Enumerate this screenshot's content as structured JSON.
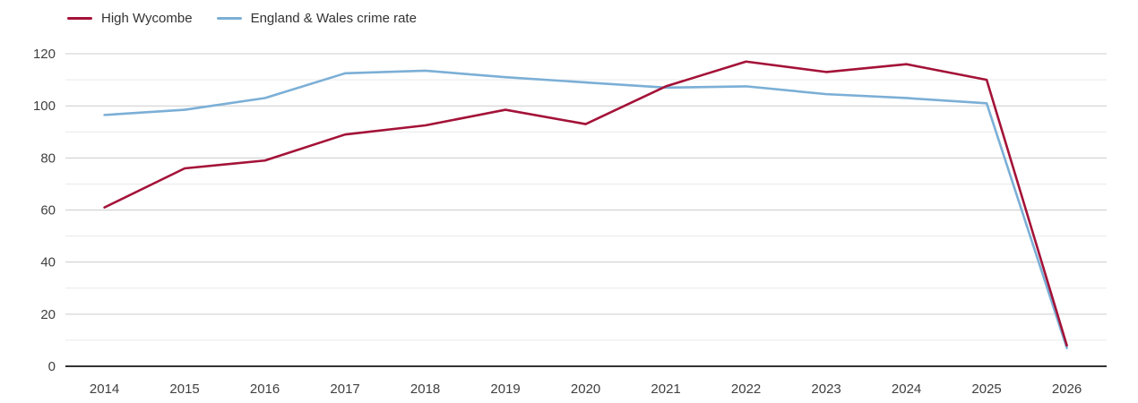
{
  "chart_data": {
    "type": "line",
    "title": "",
    "xlabel": "",
    "ylabel": "",
    "x": [
      2014,
      2015,
      2016,
      2017,
      2018,
      2019,
      2020,
      2021,
      2022,
      2023,
      2024,
      2025,
      2026
    ],
    "series": [
      {
        "name": "England & Wales crime rate",
        "color": "#7bafd6",
        "values": [
          96.5,
          98.5,
          103,
          112.5,
          113.5,
          111,
          109,
          107,
          107.5,
          104.5,
          103,
          101,
          7
        ]
      },
      {
        "name": "High Wycombe",
        "color": "#a41238",
        "values": [
          61,
          76,
          79,
          89,
          92.5,
          98.5,
          93,
          107.5,
          117,
          113,
          116,
          110,
          8
        ]
      }
    ],
    "legend_order": [
      "High Wycombe",
      "England & Wales crime rate"
    ],
    "legend_position": "top-left",
    "ylim": [
      0,
      120
    ],
    "yticks": [
      0,
      20,
      40,
      60,
      80,
      100,
      120
    ],
    "grid": {
      "major_step": 20,
      "minor_step": 10,
      "major_color": "#cccccc",
      "minor_color": "#e9e9e9",
      "axis_color": "#333333"
    }
  }
}
